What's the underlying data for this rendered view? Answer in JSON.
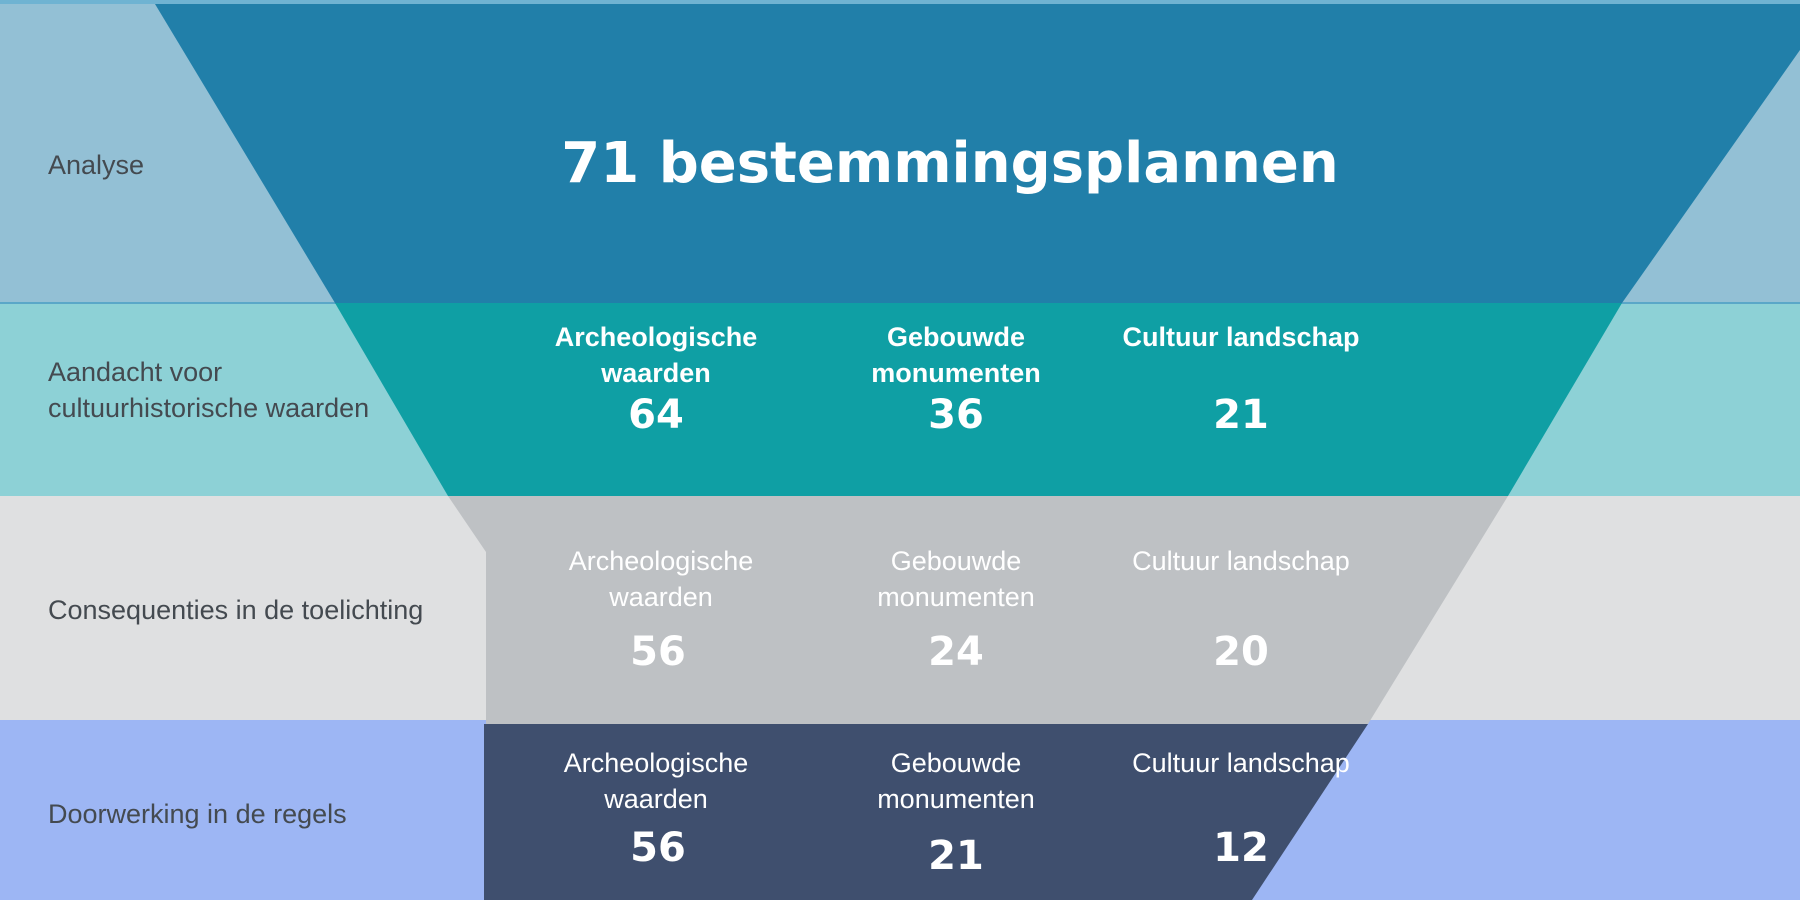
{
  "colors": {
    "band_analyse": "#93c0d5",
    "band_aandacht": "#8dd1d6",
    "band_consequenties": "#dfe0e1",
    "band_doorwerking": "#9db6f4",
    "funnel_analyse": "#217fa9",
    "funnel_aandacht": "#0f9fa4",
    "funnel_consequenties": "#bec1c4",
    "funnel_doorwerking": "#3f4f6e"
  },
  "stages": [
    {
      "label": "Analyse"
    },
    {
      "label": "Aandacht voor cultuurhistorische waarden"
    },
    {
      "label": "Consequenties in de toelichting"
    },
    {
      "label": "Doorwerking in de regels"
    }
  ],
  "headline": "71 bestemmingsplannen",
  "categories": [
    "Archeologische waarden",
    "Gebouwde monumenten",
    "Cultuur landschap"
  ],
  "values": {
    "aandacht": [
      "64",
      "36",
      "21"
    ],
    "consequenties": [
      "56",
      "24",
      "20"
    ],
    "doorwerking": [
      "56",
      "21",
      "12"
    ]
  }
}
